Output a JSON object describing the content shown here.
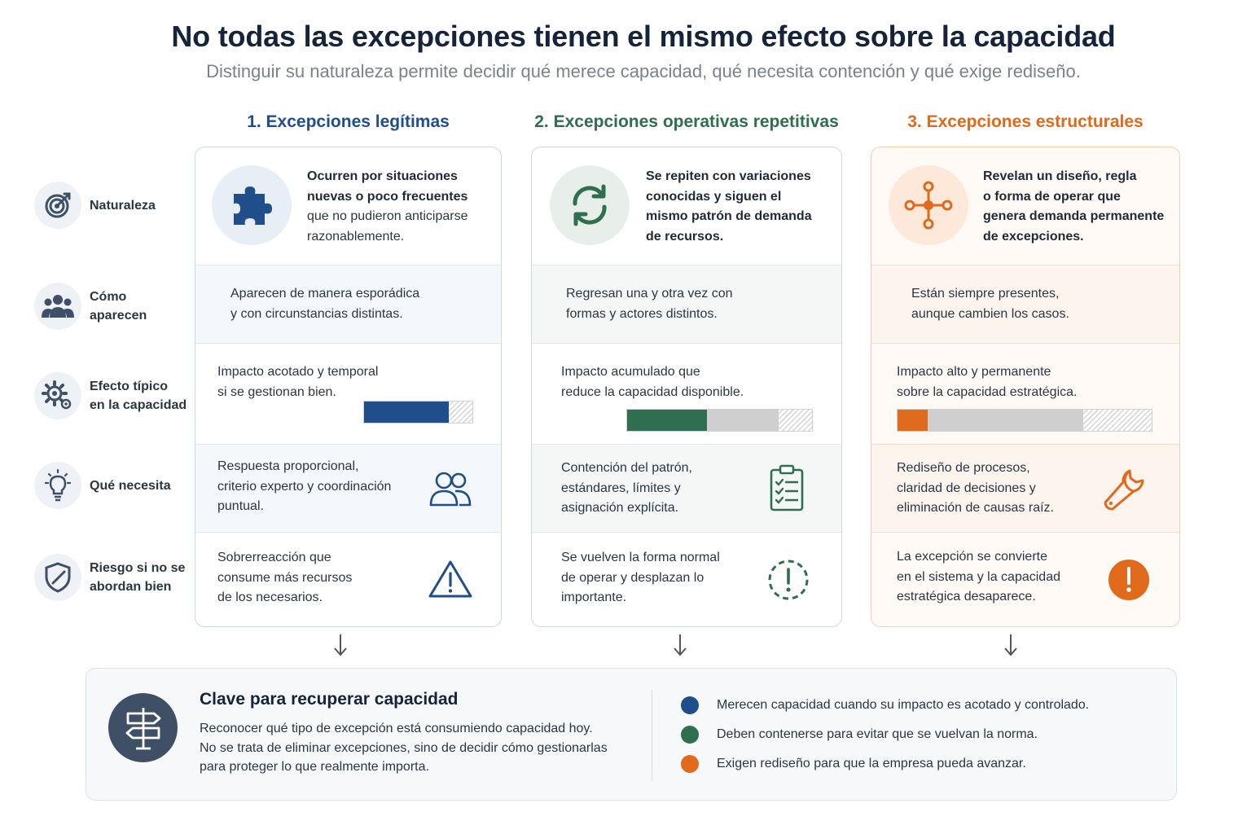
{
  "header": {
    "title": "No todas las excepciones tienen el mismo efecto sobre la capacidad",
    "subtitle": "Distinguir su naturaleza permite decidir qué merece capacidad, qué necesita contención y qué exige rediseño."
  },
  "colors": {
    "blue": "#1f4e8a",
    "green": "#2f6e4e",
    "orange": "#e06a1c",
    "grey": "#cfcfcf"
  },
  "row_labels": [
    {
      "icon": "target-icon",
      "line1": "Naturaleza",
      "line2": ""
    },
    {
      "icon": "people-icon",
      "line1": "Cómo",
      "line2": "aparecen"
    },
    {
      "icon": "gears-icon",
      "line1": "Efecto típico",
      "line2": "en la capacidad"
    },
    {
      "icon": "lightbulb-icon",
      "line1": "Qué necesita",
      "line2": ""
    },
    {
      "icon": "shield-icon",
      "line1": "Riesgo si no se",
      "line2": "abordan bien"
    }
  ],
  "columns": [
    {
      "title": "1. Excepciones legítimas",
      "icon": "puzzle-icon",
      "nature": {
        "bold": [
          "Ocurren por situaciones",
          "nuevas o poco frecuentes"
        ],
        "normal": [
          "que no pudieron anticiparse",
          "razonablemente."
        ]
      },
      "appear": [
        "Aparecen de manera esporádica",
        "y con circunstancias distintas."
      ],
      "effect": [
        "Impacto acotado y temporal",
        "si se gestionan bien."
      ],
      "impact_bar": {
        "fill": 0.78,
        "grey": 0.0
      },
      "needs": [
        "Respuesta proporcional,",
        "criterio experto y coordinación",
        "puntual."
      ],
      "needs_icon": "people-outline-icon",
      "risk": [
        "Sobrerreacción que",
        "consume más recursos",
        "de los necesarios."
      ],
      "risk_icon": "warning-triangle-icon"
    },
    {
      "title": "2. Excepciones operativas repetitivas",
      "icon": "refresh-icon",
      "nature": {
        "bold": [
          "Se repiten con variaciones",
          "conocidas y siguen el",
          "mismo patrón de demanda",
          "de recursos."
        ],
        "normal": []
      },
      "appear": [
        "Regresan una y otra vez con",
        "formas y actores distintos."
      ],
      "effect": [
        "Impacto acumulado que",
        "reduce la capacidad disponible."
      ],
      "impact_bar": {
        "fill": 0.43,
        "grey": 0.39
      },
      "needs": [
        "Contención del patrón,",
        "estándares, límites y",
        "asignación explícita."
      ],
      "needs_icon": "clipboard-checklist-icon",
      "risk": [
        "Se vuelven la forma normal",
        "de operar y desplazan lo",
        "importante."
      ],
      "risk_icon": "dashed-alert-icon"
    },
    {
      "title": "3. Excepciones estructurales",
      "icon": "network-nodes-icon",
      "nature": {
        "bold": [
          "Revelan un diseño, regla",
          "o forma de operar que",
          "genera demanda permanente",
          "de excepciones."
        ],
        "normal": []
      },
      "appear": [
        "Están siempre presentes,",
        "aunque cambien los casos."
      ],
      "effect": [
        "Impacto alto y permanente",
        "sobre la capacidad estratégica."
      ],
      "impact_bar": {
        "fill": 0.12,
        "grey": 0.61
      },
      "needs": [
        "Rediseño de procesos,",
        "claridad de decisiones y",
        "eliminación de causas raíz."
      ],
      "needs_icon": "wrench-icon",
      "risk": [
        "La excepción se convierte",
        "en el sistema y la capacidad",
        "estratégica desaparece."
      ],
      "risk_icon": "alert-circle-icon"
    }
  ],
  "bottom": {
    "icon": "signpost-icon",
    "title": "Clave para recuperar capacidad",
    "text": [
      "Reconocer qué tipo de excepción está consumiendo capacidad hoy.",
      "No se trata de eliminar excepciones, sino de decidir cómo gestionarlas",
      "para proteger lo que realmente importa."
    ],
    "legend": [
      {
        "color": "#1f4e8a",
        "text": "Merecen capacidad cuando su impacto es acotado y controlado."
      },
      {
        "color": "#2f6e4e",
        "text": "Deben contenerse para evitar que se vuelvan la norma."
      },
      {
        "color": "#e06a1c",
        "text": "Exigen rediseño para que la empresa pueda avanzar."
      }
    ]
  }
}
